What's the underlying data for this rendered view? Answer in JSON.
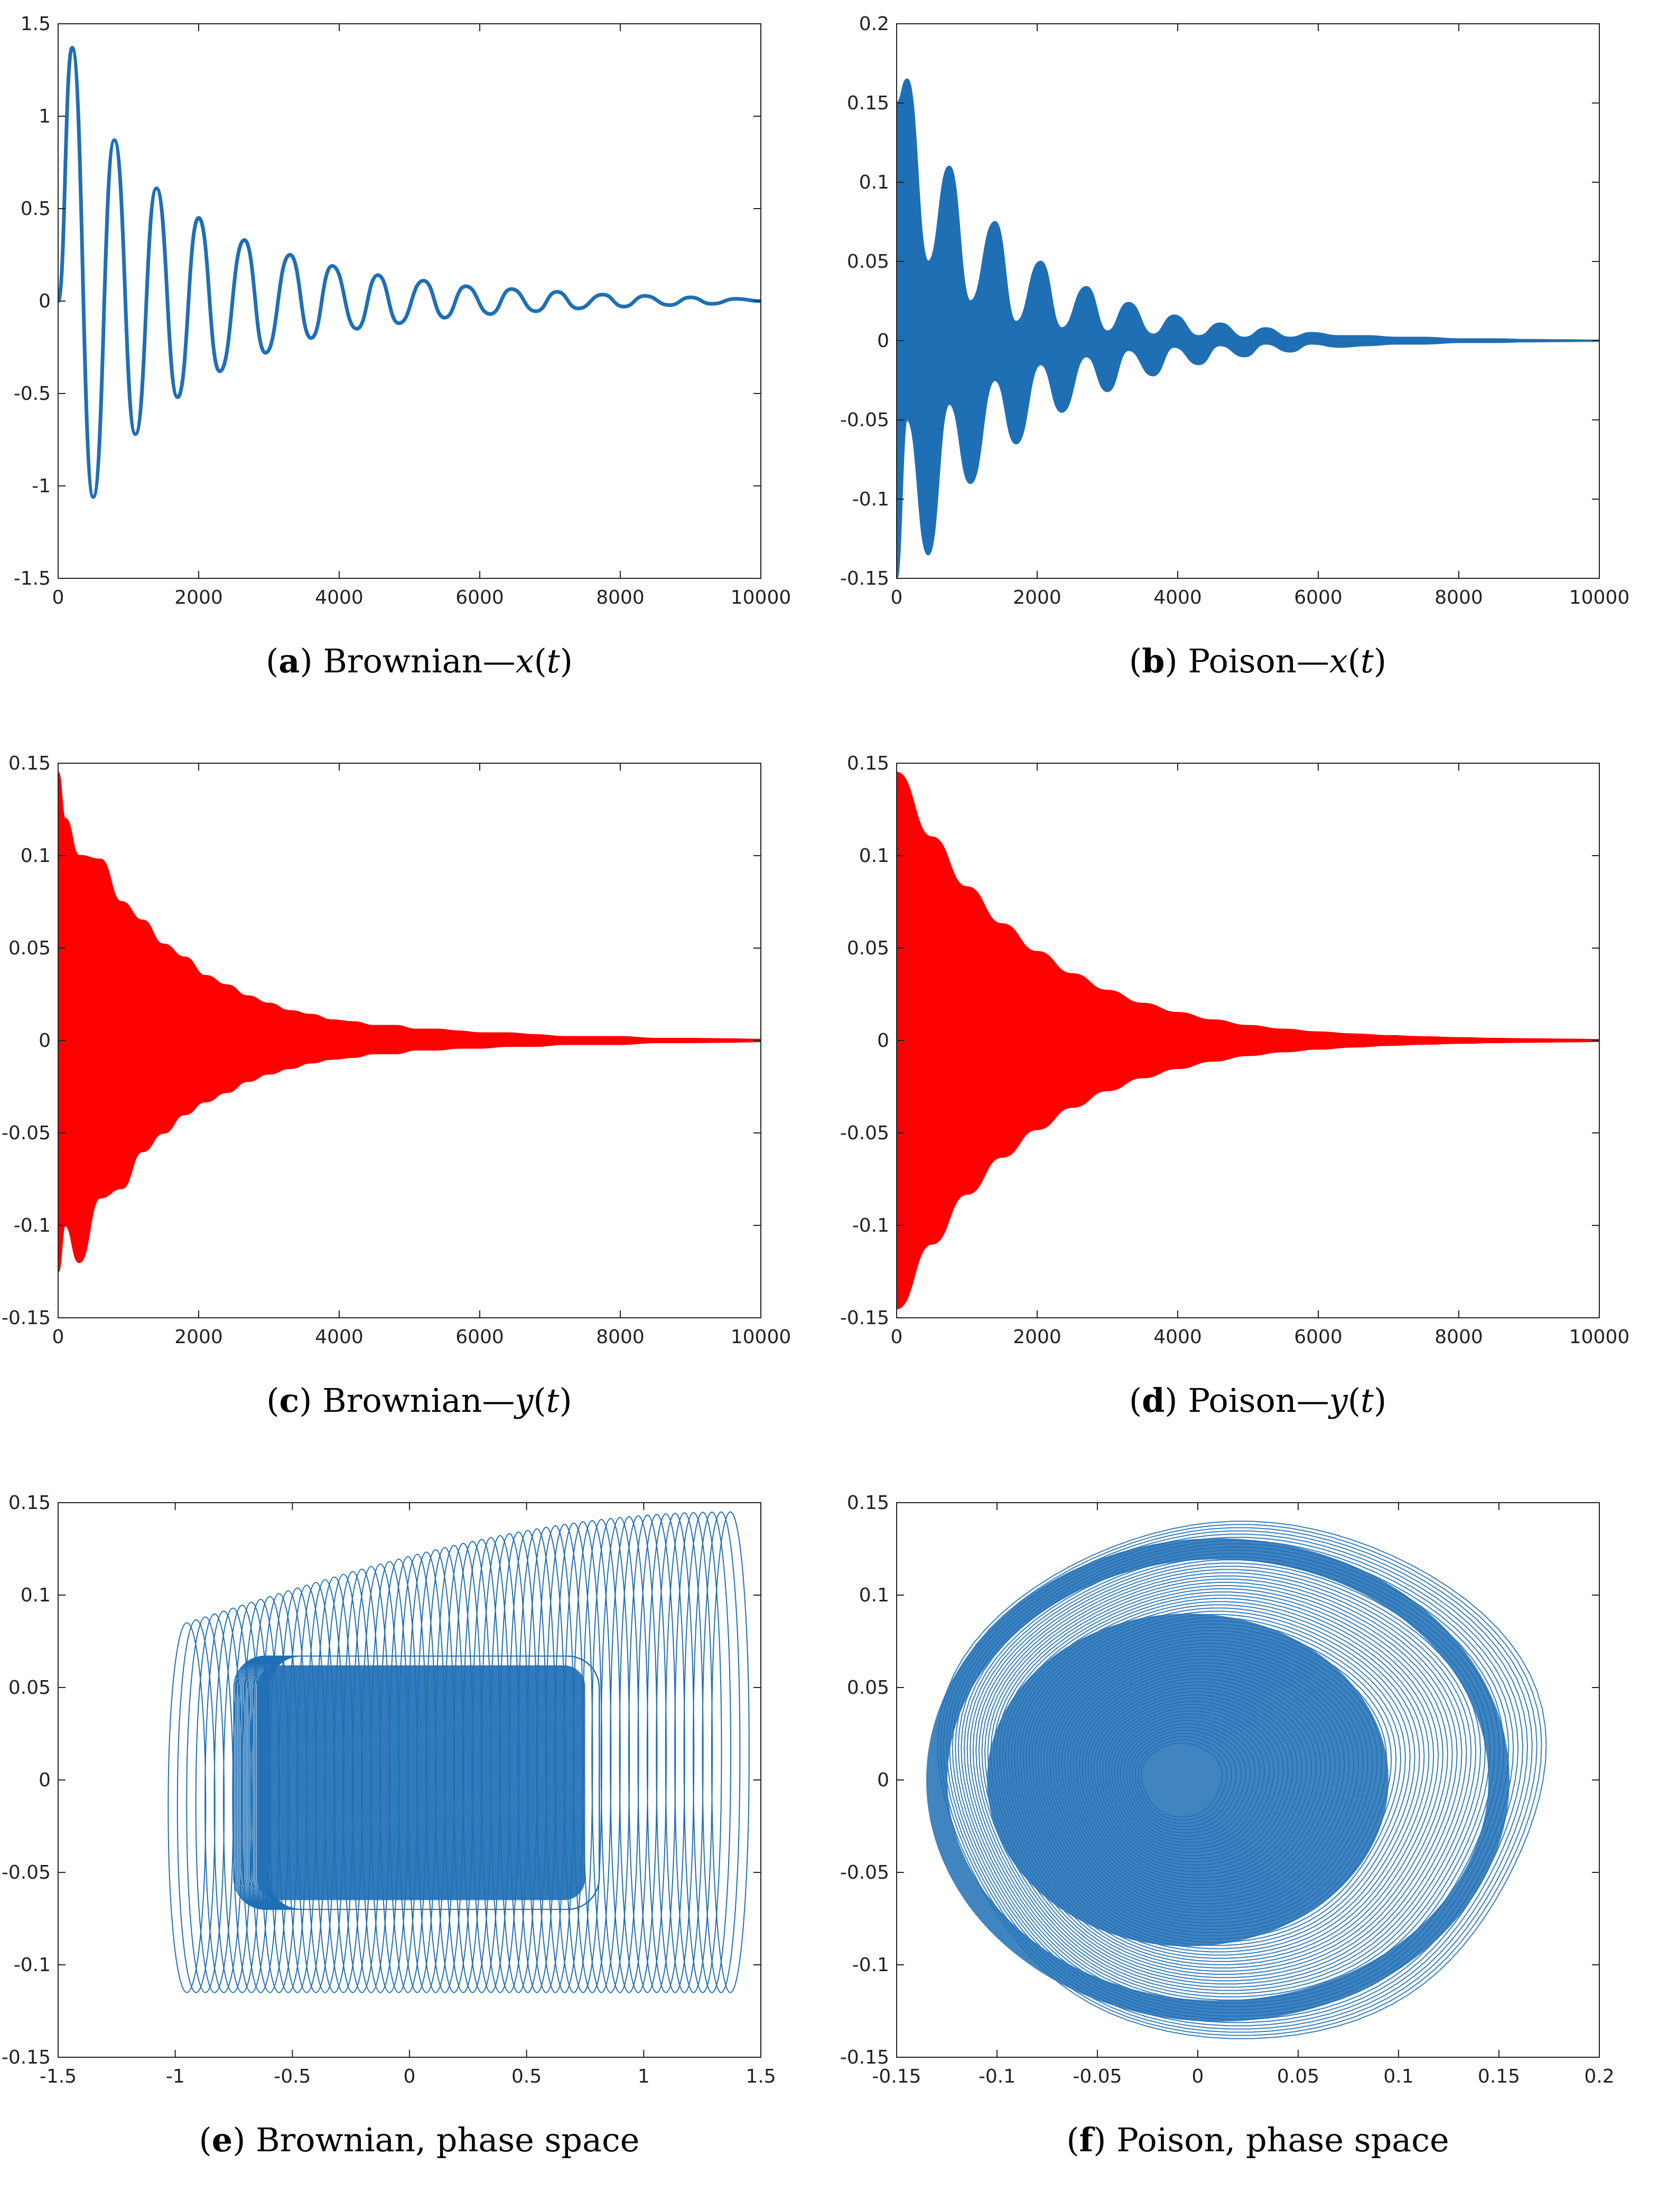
{
  "chart_data": [
    {
      "id": "a",
      "type": "line",
      "color": "#1f6fb5",
      "caption": {
        "letter": "a",
        "prefix": " Brownian—",
        "var": "x",
        "arg": "t"
      },
      "x": [
        0,
        200,
        500,
        800,
        1100,
        1400,
        1700,
        2000,
        2300,
        2650,
        2950,
        3300,
        3600,
        3900,
        4250,
        4550,
        4850,
        5200,
        5500,
        5800,
        6150,
        6450,
        6800,
        7100,
        7400,
        7750,
        8050,
        8350,
        8700,
        9000,
        9300,
        9650,
        10000
      ],
      "y": [
        0,
        1.37,
        -1.06,
        0.87,
        -0.72,
        0.61,
        -0.52,
        0.45,
        -0.38,
        0.33,
        -0.28,
        0.25,
        -0.2,
        0.19,
        -0.15,
        0.14,
        -0.12,
        0.11,
        -0.09,
        0.08,
        -0.07,
        0.065,
        -0.055,
        0.05,
        -0.04,
        0.035,
        -0.03,
        0.028,
        -0.022,
        0.02,
        -0.015,
        0.012,
        0
      ],
      "xlim": [
        0,
        10000
      ],
      "ylim": [
        -1.5,
        1.5
      ],
      "xticks": [
        0,
        2000,
        4000,
        6000,
        8000,
        10000
      ],
      "yticks": [
        -1.5,
        -1,
        -0.5,
        0,
        0.5,
        1,
        1.5
      ],
      "xticklabels": [
        "0",
        "2000",
        "4000",
        "6000",
        "8000",
        "10000"
      ],
      "yticklabels": [
        "-1.5",
        "-1",
        "-0.5",
        "0",
        "0.5",
        "1",
        "1.5"
      ]
    },
    {
      "id": "b",
      "type": "area",
      "color": "#1f6fb5",
      "caption": {
        "letter": "b",
        "prefix": " Poison—",
        "var": "x",
        "arg": "t"
      },
      "x": [
        0,
        150,
        450,
        750,
        1050,
        1400,
        1700,
        2050,
        2350,
        2700,
        3000,
        3300,
        3650,
        3950,
        4300,
        4600,
        4950,
        5250,
        5600,
        5900,
        6300,
        6700,
        7100,
        7500,
        8000,
        8500,
        9000,
        9500,
        10000
      ],
      "upper": [
        0.15,
        0.165,
        0.05,
        0.11,
        0.025,
        0.075,
        0.012,
        0.05,
        0.008,
        0.034,
        0.006,
        0.024,
        0.004,
        0.016,
        0.003,
        0.011,
        0.002,
        0.008,
        0.002,
        0.005,
        0.003,
        0.003,
        0.002,
        0.002,
        0.001,
        0.001,
        0.0006,
        0.0004,
        0.0002
      ],
      "lower": [
        -0.15,
        -0.05,
        -0.135,
        -0.04,
        -0.09,
        -0.025,
        -0.065,
        -0.015,
        -0.045,
        -0.01,
        -0.032,
        -0.006,
        -0.022,
        -0.004,
        -0.015,
        -0.003,
        -0.01,
        -0.002,
        -0.007,
        -0.002,
        -0.004,
        -0.003,
        -0.002,
        -0.002,
        -0.001,
        -0.001,
        -0.0006,
        -0.0004,
        -0.0002
      ],
      "xlim": [
        0,
        10000
      ],
      "ylim": [
        -0.15,
        0.2
      ],
      "xticks": [
        0,
        2000,
        4000,
        6000,
        8000,
        10000
      ],
      "yticks": [
        -0.15,
        -0.1,
        -0.05,
        0,
        0.05,
        0.1,
        0.15,
        0.2
      ],
      "xticklabels": [
        "0",
        "2000",
        "4000",
        "6000",
        "8000",
        "10000"
      ],
      "yticklabels": [
        "-0.15",
        "-0.1",
        "-0.05",
        "0",
        "0.05",
        "0.1",
        "0.15",
        "0.2"
      ]
    },
    {
      "id": "c",
      "type": "area",
      "color": "#ff0000",
      "caption": {
        "letter": "c",
        "prefix": " Brownian—",
        "var": "y",
        "arg": "t"
      },
      "x": [
        0,
        100,
        300,
        600,
        900,
        1200,
        1500,
        1800,
        2100,
        2400,
        2700,
        3000,
        3300,
        3600,
        3900,
        4200,
        4500,
        4800,
        5100,
        5400,
        5700,
        6000,
        6400,
        6800,
        7200,
        7600,
        8000,
        8500,
        9000,
        9500,
        10000
      ],
      "upper": [
        0.145,
        0.12,
        0.1,
        0.098,
        0.075,
        0.065,
        0.052,
        0.045,
        0.035,
        0.03,
        0.024,
        0.02,
        0.016,
        0.014,
        0.011,
        0.01,
        0.008,
        0.008,
        0.006,
        0.006,
        0.005,
        0.004,
        0.004,
        0.003,
        0.002,
        0.002,
        0.002,
        0.001,
        0.001,
        0.0008,
        0.0005
      ],
      "lower": [
        -0.125,
        -0.1,
        -0.12,
        -0.085,
        -0.08,
        -0.06,
        -0.05,
        -0.04,
        -0.033,
        -0.028,
        -0.022,
        -0.018,
        -0.015,
        -0.012,
        -0.01,
        -0.009,
        -0.007,
        -0.007,
        -0.005,
        -0.005,
        -0.004,
        -0.004,
        -0.003,
        -0.003,
        -0.002,
        -0.002,
        -0.002,
        -0.001,
        -0.001,
        -0.0008,
        -0.0005
      ],
      "xlim": [
        0,
        10000
      ],
      "ylim": [
        -0.15,
        0.15
      ],
      "xticks": [
        0,
        2000,
        4000,
        6000,
        8000,
        10000
      ],
      "yticks": [
        -0.15,
        -0.1,
        -0.05,
        0,
        0.05,
        0.1,
        0.15
      ],
      "xticklabels": [
        "0",
        "2000",
        "4000",
        "6000",
        "8000",
        "10000"
      ],
      "yticklabels": [
        "-0.15",
        "-0.1",
        "-0.05",
        "0",
        "0.05",
        "0.1",
        "0.15"
      ]
    },
    {
      "id": "d",
      "type": "area",
      "color": "#ff0000",
      "caption": {
        "letter": "d",
        "prefix": " Poison—",
        "var": "y",
        "arg": "t"
      },
      "x": [
        0,
        500,
        1000,
        1500,
        2000,
        2500,
        3000,
        3500,
        4000,
        4500,
        5000,
        5500,
        6000,
        6500,
        7000,
        7500,
        8000,
        8500,
        9000,
        9500,
        10000
      ],
      "upper": [
        0.145,
        0.11,
        0.083,
        0.063,
        0.048,
        0.036,
        0.027,
        0.02,
        0.015,
        0.011,
        0.008,
        0.006,
        0.0045,
        0.0034,
        0.0025,
        0.0019,
        0.0014,
        0.001,
        0.0008,
        0.0006,
        0.0004
      ],
      "lower": [
        -0.145,
        -0.11,
        -0.083,
        -0.063,
        -0.048,
        -0.036,
        -0.027,
        -0.02,
        -0.015,
        -0.011,
        -0.008,
        -0.006,
        -0.0045,
        -0.0034,
        -0.0025,
        -0.0019,
        -0.0014,
        -0.001,
        -0.0008,
        -0.0006,
        -0.0004
      ],
      "xlim": [
        0,
        10000
      ],
      "ylim": [
        -0.15,
        0.15
      ],
      "xticks": [
        0,
        2000,
        4000,
        6000,
        8000,
        10000
      ],
      "yticks": [
        -0.15,
        -0.1,
        -0.05,
        0,
        0.05,
        0.1,
        0.15
      ],
      "xticklabels": [
        "0",
        "2000",
        "4000",
        "6000",
        "8000",
        "10000"
      ],
      "yticklabels": [
        "-0.15",
        "-0.1",
        "-0.05",
        "0",
        "0.05",
        "0.1",
        "0.15"
      ]
    },
    {
      "id": "e",
      "type": "phase",
      "color": "#1f6fb5",
      "caption": {
        "letter": "e",
        "prefix": " Brownian, phase space"
      },
      "phase": {
        "x_start": -0.95,
        "x_end": 1.37,
        "y_amp_start": 0.085,
        "y_amp_end": 0.145,
        "x_amp": 0.08,
        "loops": 60,
        "inner": {
          "x_min": -0.65,
          "x_max": 0.75,
          "y_max": 0.062,
          "y_min": -0.065
        }
      },
      "xlim": [
        -1.5,
        1.5
      ],
      "ylim": [
        -0.15,
        0.15
      ],
      "xticks": [
        -1.5,
        -1,
        -0.5,
        0,
        0.5,
        1,
        1.5
      ],
      "yticks": [
        -0.15,
        -0.1,
        -0.05,
        0,
        0.05,
        0.1,
        0.15
      ],
      "xticklabels": [
        "-1.5",
        "-1",
        "-0.5",
        "0",
        "0.5",
        "1",
        "1.5"
      ],
      "yticklabels": [
        "-0.15",
        "-0.1",
        "-0.05",
        "0",
        "0.05",
        "0.1",
        "0.15"
      ]
    },
    {
      "id": "f",
      "type": "phase",
      "color": "#1f6fb5",
      "caption": {
        "letter": "f",
        "prefix": " Poison, phase space"
      },
      "phase": {
        "cx": 0.012,
        "cy": 0.0,
        "rx": 0.15,
        "ry": 0.14,
        "x_min": -0.137,
        "x_max": 0.163,
        "y_min": -0.14,
        "y_max": 0.14,
        "loops": 70
      },
      "xlim": [
        -0.15,
        0.2
      ],
      "ylim": [
        -0.15,
        0.15
      ],
      "xticks": [
        -0.15,
        -0.1,
        -0.05,
        0,
        0.05,
        0.1,
        0.15,
        0.2
      ],
      "yticks": [
        -0.15,
        -0.1,
        -0.05,
        0,
        0.05,
        0.1,
        0.15
      ],
      "xticklabels": [
        "-0.15",
        "-0.1",
        "-0.05",
        "0",
        "0.05",
        "0.1",
        "0.15",
        "0.2"
      ],
      "yticklabels": [
        "-0.15",
        "-0.1",
        "-0.05",
        "0",
        "0.05",
        "0.1",
        "0.15"
      ]
    }
  ]
}
